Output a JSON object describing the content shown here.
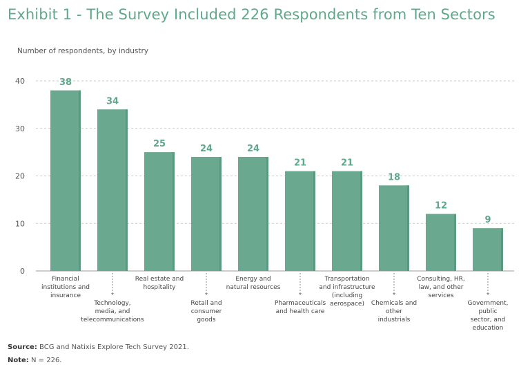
{
  "title": "Exhibit 1 - The Survey Included 226 Respondents from Ten Sectors",
  "chart_data": {
    "type": "bar",
    "ylabel": "Number of respondents, by industry",
    "ylim": [
      0,
      40
    ],
    "yticks": [
      0,
      10,
      20,
      30,
      40
    ],
    "grid": true,
    "categories": [
      [
        "Financial",
        "institutions and",
        "insurance"
      ],
      [
        "Technology,",
        "media, and",
        "telecommunications"
      ],
      [
        "Real estate and",
        "hospitality"
      ],
      [
        "Retail and",
        "consumer",
        "goods"
      ],
      [
        "Energy and",
        "natural resources"
      ],
      [
        "Pharmaceuticals",
        "and health care"
      ],
      [
        "Transportation",
        "and infrastructure",
        "(including",
        "aerospace)"
      ],
      [
        "Chemicals and",
        "other",
        "industrials"
      ],
      [
        "Consulting, HR,",
        "law, and other",
        "services"
      ],
      [
        "Government,",
        "public",
        "sector, and",
        "education"
      ]
    ],
    "values": [
      38,
      34,
      25,
      24,
      24,
      21,
      21,
      18,
      12,
      9
    ],
    "bar_color": "#6aa88f",
    "bar_edge_color": "#5a9a80",
    "label_color": "#5fa88b"
  },
  "footer": {
    "source_label": "Source:",
    "source_text": "BCG and Natixis Explore Tech Survey 2021.",
    "note_label": "Note:",
    "note_text": "N = 226."
  }
}
